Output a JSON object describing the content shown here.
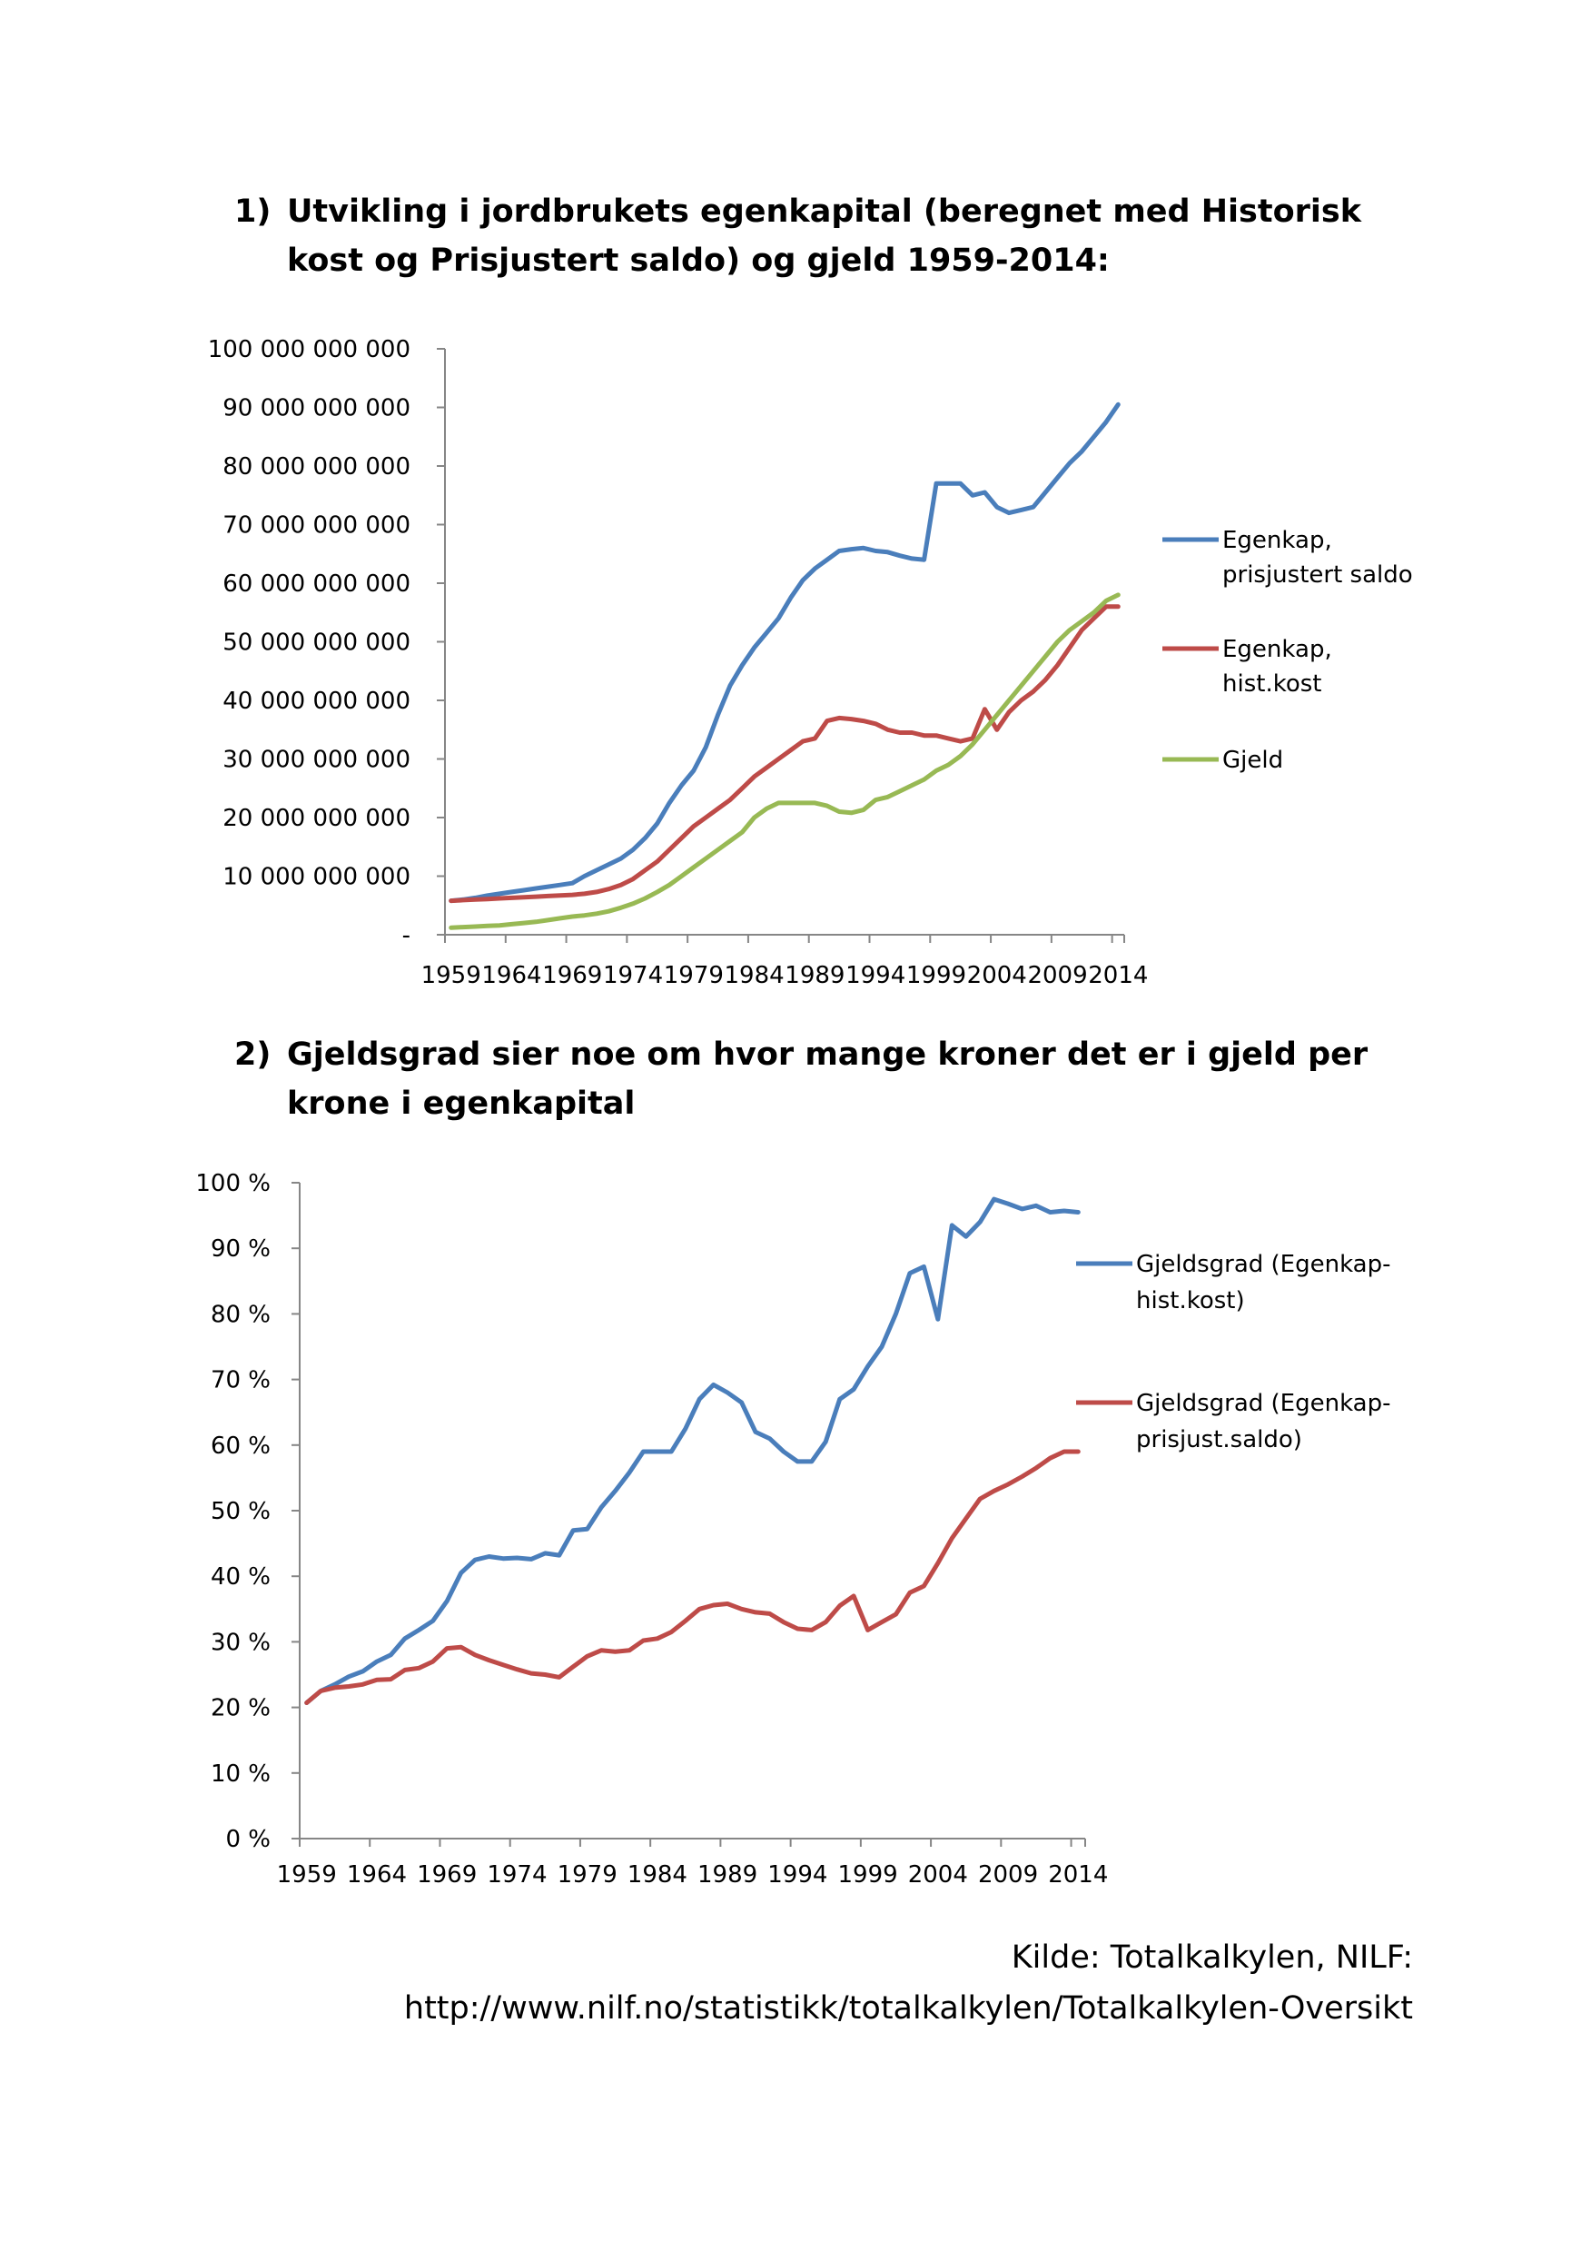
{
  "headings": {
    "h1_number": "1)",
    "h1_text": "Utvikling i jordbrukets egenkapital (beregnet med Historisk kost og Prisjustert saldo) og gjeld 1959-2014:",
    "h2_number": "2)",
    "h2_text": "Gjeldsgrad sier noe om hvor mange kroner det er i gjeld per krone i egenkapital"
  },
  "source": {
    "line1": "Kilde: Totalkalkylen, NILF:",
    "line2": "http://www.nilf.no/statistikk/totalkalkylen/Totalkalkylen-Oversikt"
  },
  "colors": {
    "blue": "#4a7ebb",
    "red": "#be4b48",
    "green": "#98b954",
    "axis": "#868686"
  },
  "chart_data": [
    {
      "type": "line",
      "ylim": [
        0,
        100000000000
      ],
      "y_ticks": [
        {
          "value": 0,
          "label": "-"
        },
        {
          "value": 10000000000,
          "label": "10 000 000 000"
        },
        {
          "value": 20000000000,
          "label": "20 000 000 000"
        },
        {
          "value": 30000000000,
          "label": "30 000 000 000"
        },
        {
          "value": 40000000000,
          "label": "40 000 000 000"
        },
        {
          "value": 50000000000,
          "label": "50 000 000 000"
        },
        {
          "value": 60000000000,
          "label": "60 000 000 000"
        },
        {
          "value": 70000000000,
          "label": "70 000 000 000"
        },
        {
          "value": 80000000000,
          "label": "80 000 000 000"
        },
        {
          "value": 90000000000,
          "label": "90 000 000 000"
        },
        {
          "value": 100000000000,
          "label": "100 000 000 000"
        }
      ],
      "x": [
        1959,
        1960,
        1961,
        1962,
        1963,
        1964,
        1965,
        1966,
        1967,
        1968,
        1969,
        1970,
        1971,
        1972,
        1973,
        1974,
        1975,
        1976,
        1977,
        1978,
        1979,
        1980,
        1981,
        1982,
        1983,
        1984,
        1985,
        1986,
        1987,
        1988,
        1989,
        1990,
        1991,
        1992,
        1993,
        1994,
        1995,
        1996,
        1997,
        1998,
        1999,
        2000,
        2001,
        2002,
        2003,
        2004,
        2005,
        2006,
        2007,
        2008,
        2009,
        2010,
        2011,
        2012,
        2013,
        2014
      ],
      "x_tick_labels": [
        "1959",
        "1964",
        "1969",
        "1974",
        "1979",
        "1984",
        "1989",
        "1994",
        "1999",
        "2004",
        "2009",
        "2014"
      ],
      "legend_position": "right",
      "series": [
        {
          "name_lines": [
            "Egenkap,",
            "prisjustert saldo"
          ],
          "color_key": "blue",
          "values": [
            5.8,
            6.0,
            6.3,
            6.7,
            7.0,
            7.3,
            7.6,
            7.9,
            8.2,
            8.5,
            8.8,
            10.0,
            11.0,
            12.0,
            13.0,
            14.5,
            16.5,
            19.0,
            22.5,
            25.5,
            28.0,
            32.0,
            37.5,
            42.5,
            46.0,
            49.0,
            51.5,
            54.0,
            57.5,
            60.5,
            62.5,
            64.0,
            65.5,
            65.8,
            66.0,
            65.5,
            65.3,
            64.7,
            64.2,
            64.0,
            77.0,
            77.0,
            77.0,
            75.0,
            75.5,
            73.0,
            72.0,
            72.5,
            73.0,
            75.5,
            78.0,
            80.5,
            82.5,
            85.0,
            87.5,
            90.5
          ]
        },
        {
          "name_lines": [
            "Egenkap,",
            "hist.kost"
          ],
          "color_key": "red",
          "values": [
            5.8,
            5.9,
            6.0,
            6.1,
            6.2,
            6.3,
            6.4,
            6.5,
            6.6,
            6.7,
            6.8,
            7.0,
            7.3,
            7.8,
            8.5,
            9.5,
            11.0,
            12.5,
            14.5,
            16.5,
            18.5,
            20.0,
            21.5,
            23.0,
            25.0,
            27.0,
            28.5,
            30.0,
            31.5,
            33.0,
            33.5,
            36.5,
            37.0,
            36.8,
            36.5,
            36.0,
            35.0,
            34.5,
            34.5,
            34.0,
            34.0,
            33.5,
            33.0,
            33.5,
            38.5,
            35.0,
            38.0,
            40.0,
            41.5,
            43.5,
            46.0,
            49.0,
            52.0,
            54.0,
            56.0,
            56.0
          ]
        },
        {
          "name_lines": [
            "Gjeld"
          ],
          "color_key": "green",
          "values": [
            1.2,
            1.3,
            1.4,
            1.5,
            1.6,
            1.8,
            2.0,
            2.2,
            2.5,
            2.8,
            3.1,
            3.3,
            3.6,
            4.0,
            4.6,
            5.3,
            6.2,
            7.3,
            8.5,
            10.0,
            11.5,
            13.0,
            14.5,
            16.0,
            17.5,
            20.0,
            21.5,
            22.5,
            22.5,
            22.5,
            22.5,
            22.0,
            21.0,
            20.8,
            21.3,
            23.0,
            23.5,
            24.5,
            25.5,
            26.5,
            28.0,
            29.0,
            30.5,
            32.5,
            35.0,
            37.5,
            40.0,
            42.5,
            45.0,
            47.5,
            50.0,
            52.0,
            53.5,
            55.0,
            57.0,
            58.0
          ],
          "values_unit_note": "billions"
        }
      ]
    },
    {
      "type": "line",
      "ylim": [
        0,
        100
      ],
      "y_ticks": [
        {
          "value": 0,
          "label": "0 %"
        },
        {
          "value": 10,
          "label": "10 %"
        },
        {
          "value": 20,
          "label": "20 %"
        },
        {
          "value": 30,
          "label": "30 %"
        },
        {
          "value": 40,
          "label": "40 %"
        },
        {
          "value": 50,
          "label": "50 %"
        },
        {
          "value": 60,
          "label": "60 %"
        },
        {
          "value": 70,
          "label": "70 %"
        },
        {
          "value": 80,
          "label": "80 %"
        },
        {
          "value": 90,
          "label": "90 %"
        },
        {
          "value": 100,
          "label": "100 %"
        }
      ],
      "x": [
        1959,
        1960,
        1961,
        1962,
        1963,
        1964,
        1965,
        1966,
        1967,
        1968,
        1969,
        1970,
        1971,
        1972,
        1973,
        1974,
        1975,
        1976,
        1977,
        1978,
        1979,
        1980,
        1981,
        1982,
        1983,
        1984,
        1985,
        1986,
        1987,
        1988,
        1989,
        1990,
        1991,
        1992,
        1993,
        1994,
        1995,
        1996,
        1997,
        1998,
        1999,
        2000,
        2001,
        2002,
        2003,
        2004,
        2005,
        2006,
        2007,
        2008,
        2009,
        2010,
        2011,
        2012,
        2013,
        2014
      ],
      "x_tick_labels": [
        "1959",
        "1964",
        "1969",
        "1974",
        "1979",
        "1984",
        "1989",
        "1994",
        "1999",
        "2004",
        "2009",
        "2014"
      ],
      "legend_position": "right",
      "series": [
        {
          "name_lines": [
            "Gjeldsgrad (Egenkap-",
            "hist.kost)"
          ],
          "color_key": "blue",
          "values": [
            20.7,
            22.5,
            23.5,
            24.7,
            25.5,
            27.0,
            28.0,
            30.5,
            31.8,
            33.2,
            36.2,
            40.5,
            42.5,
            43.0,
            42.7,
            42.8,
            42.6,
            43.5,
            43.2,
            47.0,
            47.2,
            50.5,
            53.0,
            55.8,
            59.0,
            59.0,
            59.0,
            62.5,
            67.0,
            69.2,
            68.0,
            66.5,
            62.0,
            61.0,
            59.0,
            57.5,
            57.5,
            60.5,
            67.0,
            68.5,
            72.0,
            75.0,
            80.0,
            86.2,
            87.2,
            79.2,
            93.5,
            91.8,
            94.0,
            97.5,
            96.8,
            96.0,
            96.5,
            95.5,
            95.7,
            95.5
          ]
        },
        {
          "name_lines": [
            "Gjeldsgrad (Egenkap-",
            "prisjust.saldo)"
          ],
          "color_key": "red",
          "values": [
            20.7,
            22.5,
            23.0,
            23.2,
            23.5,
            24.2,
            24.3,
            25.7,
            26.0,
            27.0,
            29.0,
            29.2,
            28.0,
            27.2,
            26.5,
            25.8,
            25.2,
            25.0,
            24.6,
            26.2,
            27.8,
            28.7,
            28.5,
            28.7,
            30.2,
            30.5,
            31.5,
            33.2,
            35.0,
            35.6,
            35.8,
            35.0,
            34.5,
            34.3,
            33.0,
            32.0,
            31.8,
            33.0,
            35.5,
            37.0,
            31.8,
            33.0,
            34.2,
            37.5,
            38.5,
            42.0,
            45.8,
            48.8,
            51.8,
            53.0,
            54.0,
            55.2,
            56.5,
            58.0,
            59.0,
            59.0
          ]
        }
      ]
    }
  ]
}
